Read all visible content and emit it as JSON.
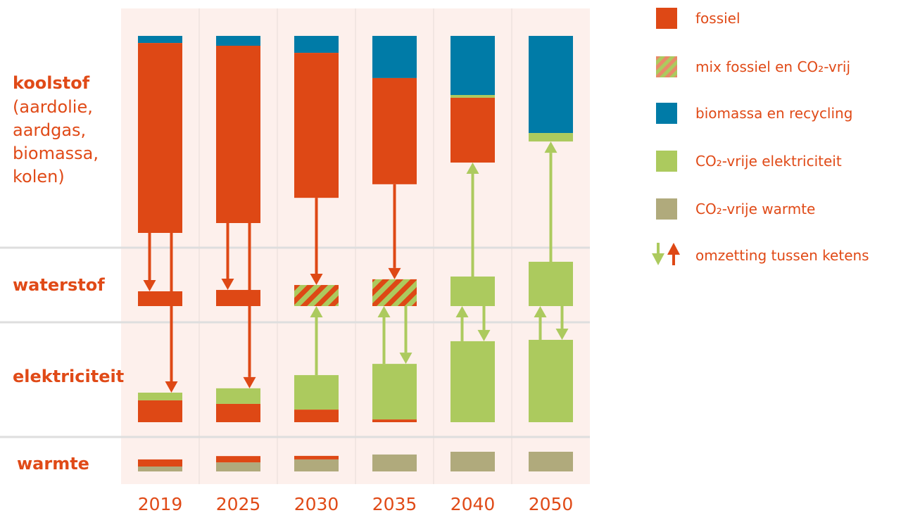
{
  "colors": {
    "fossiel": "#de4815",
    "biomassa": "#007ba7",
    "elektriciteit": "#acca5e",
    "warmte": "#b0aa7c",
    "background": "#fdf0ec",
    "text": "#e04a17"
  },
  "legend": [
    {
      "type": "fossiel",
      "label": "fossiel"
    },
    {
      "type": "mix",
      "label": "mix fossiel en CO₂-vrij"
    },
    {
      "type": "biomassa",
      "label": "biomassa en recycling"
    },
    {
      "type": "elektriciteit",
      "label": "CO₂-vrije elektriciteit"
    },
    {
      "type": "warmte",
      "label": "CO₂-vrije warmte"
    },
    {
      "type": "arrows",
      "label": "omzetting tussen ketens"
    }
  ],
  "chart_data": {
    "type": "bar",
    "categories": [
      "2019",
      "2025",
      "2030",
      "2035",
      "2040",
      "2050"
    ],
    "rows": [
      {
        "key": "koolstof",
        "label": "koolstof",
        "sublabel": [
          "(aardolie,",
          "aardgas,",
          "biomassa,",
          "kolen)"
        ],
        "segments": [
          [
            {
              "type": "biomassa",
              "value": 3.6
            },
            {
              "type": "fossiel",
              "value": 96.4
            }
          ],
          [
            {
              "type": "biomassa",
              "value": 5
            },
            {
              "type": "fossiel",
              "value": 90
            }
          ],
          [
            {
              "type": "biomassa",
              "value": 8.6
            },
            {
              "type": "fossiel",
              "value": 73.6
            }
          ],
          [
            {
              "type": "biomassa",
              "value": 21.4
            },
            {
              "type": "fossiel",
              "value": 53.9
            }
          ],
          [
            {
              "type": "biomassa",
              "value": 30
            },
            {
              "type": "elektriciteit",
              "value": 1.4
            },
            {
              "type": "fossiel",
              "value": 32.9
            }
          ],
          [
            {
              "type": "biomassa",
              "value": 49.3
            },
            {
              "type": "elektriciteit",
              "value": 4.3
            }
          ]
        ]
      },
      {
        "key": "waterstof",
        "label": "waterstof",
        "segments": [
          [
            {
              "type": "fossiel",
              "value": 7.5
            }
          ],
          [
            {
              "type": "fossiel",
              "value": 8.2
            }
          ],
          [
            {
              "type": "mix",
              "value": 10.7
            }
          ],
          [
            {
              "type": "mix",
              "value": 13.6
            }
          ],
          [
            {
              "type": "elektriciteit",
              "value": 15
            }
          ],
          [
            {
              "type": "elektriciteit",
              "value": 22.5
            }
          ]
        ]
      },
      {
        "key": "elektriciteit",
        "label": "elektriciteit",
        "segments": [
          [
            {
              "type": "fossiel",
              "value": 11.1
            },
            {
              "type": "elektriciteit",
              "value": 3.9
            }
          ],
          [
            {
              "type": "fossiel",
              "value": 9.3
            },
            {
              "type": "elektriciteit",
              "value": 7.9
            }
          ],
          [
            {
              "type": "fossiel",
              "value": 6.4
            },
            {
              "type": "elektriciteit",
              "value": 17.5
            }
          ],
          [
            {
              "type": "fossiel",
              "value": 1.4
            },
            {
              "type": "elektriciteit",
              "value": 28.2
            }
          ],
          [
            {
              "type": "elektriciteit",
              "value": 41.1
            }
          ],
          [
            {
              "type": "elektriciteit",
              "value": 41.8
            }
          ]
        ]
      },
      {
        "key": "warmte",
        "label": "warmte",
        "segments": [
          [
            {
              "type": "warmte",
              "value": 2.5
            },
            {
              "type": "fossiel",
              "value": 3.6
            }
          ],
          [
            {
              "type": "warmte",
              "value": 4.6
            },
            {
              "type": "fossiel",
              "value": 3.2
            }
          ],
          [
            {
              "type": "warmte",
              "value": 6.1
            },
            {
              "type": "fossiel",
              "value": 1.8
            }
          ],
          [
            {
              "type": "warmte",
              "value": 8.6
            }
          ],
          [
            {
              "type": "warmte",
              "value": 10
            }
          ],
          [
            {
              "type": "warmte",
              "value": 10
            }
          ]
        ]
      }
    ],
    "flows": [
      {
        "year": "2019",
        "from": "koolstof",
        "to": "waterstof",
        "type": "fossiel",
        "slot": "left"
      },
      {
        "year": "2019",
        "from": "koolstof",
        "to": "elektriciteit",
        "type": "fossiel",
        "slot": "right"
      },
      {
        "year": "2025",
        "from": "koolstof",
        "to": "waterstof",
        "type": "fossiel",
        "slot": "left"
      },
      {
        "year": "2025",
        "from": "koolstof",
        "to": "elektriciteit",
        "type": "fossiel",
        "slot": "right"
      },
      {
        "year": "2030",
        "from": "koolstof",
        "to": "waterstof",
        "type": "fossiel",
        "slot": "center"
      },
      {
        "year": "2030",
        "from": "elektriciteit",
        "to": "waterstof",
        "type": "elektriciteit",
        "slot": "center"
      },
      {
        "year": "2035",
        "from": "koolstof",
        "to": "waterstof",
        "type": "fossiel",
        "slot": "center"
      },
      {
        "year": "2035",
        "from": "elektriciteit",
        "to": "waterstof",
        "type": "elektriciteit",
        "slot": "left"
      },
      {
        "year": "2035",
        "from": "waterstof",
        "to": "elektriciteit",
        "type": "elektriciteit",
        "slot": "right"
      },
      {
        "year": "2040",
        "from": "waterstof",
        "to": "koolstof",
        "type": "elektriciteit",
        "slot": "center"
      },
      {
        "year": "2040",
        "from": "elektriciteit",
        "to": "waterstof",
        "type": "elektriciteit",
        "slot": "left"
      },
      {
        "year": "2040",
        "from": "waterstof",
        "to": "elektriciteit",
        "type": "elektriciteit",
        "slot": "right"
      },
      {
        "year": "2050",
        "from": "waterstof",
        "to": "koolstof",
        "type": "elektriciteit",
        "slot": "center"
      },
      {
        "year": "2050",
        "from": "elektriciteit",
        "to": "waterstof",
        "type": "elektriciteit",
        "slot": "left"
      },
      {
        "year": "2050",
        "from": "waterstof",
        "to": "elektriciteit",
        "type": "elektriciteit",
        "slot": "right"
      }
    ]
  }
}
